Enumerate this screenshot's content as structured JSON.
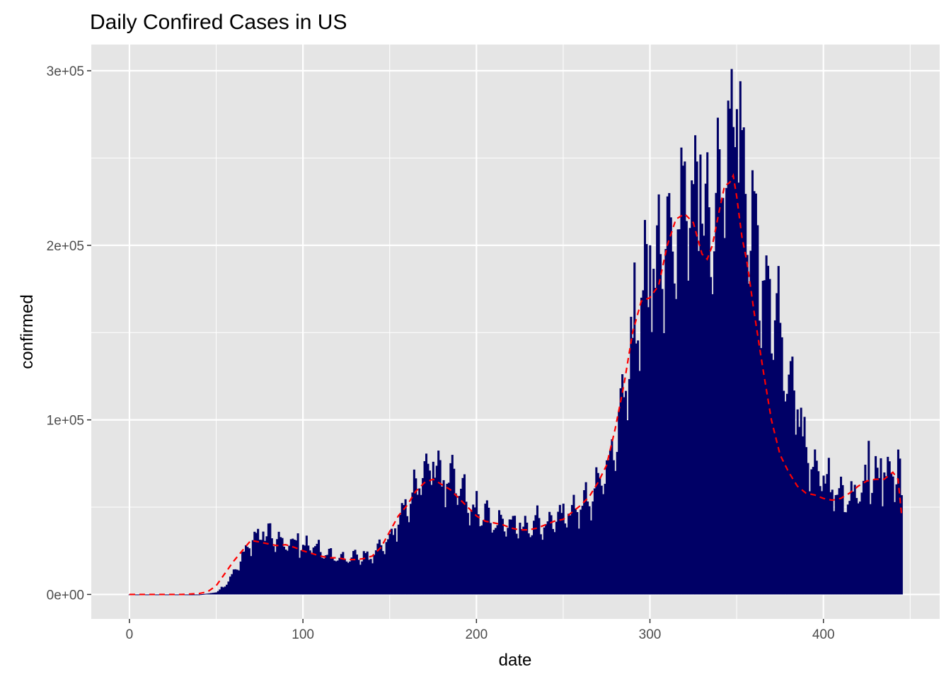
{
  "chart_data": {
    "type": "bar",
    "title": "Daily Confired Cases in US",
    "xlabel": "date",
    "ylabel": "confirmed",
    "xlim": [
      -22,
      467
    ],
    "ylim": [
      -14000,
      315000
    ],
    "x_ticks": [
      0,
      100,
      200,
      300,
      400
    ],
    "x_tick_labels": [
      "0",
      "100",
      "200",
      "300",
      "400"
    ],
    "y_ticks": [
      0,
      100000,
      200000,
      300000
    ],
    "y_tick_labels": [
      "0e+00",
      "1e+05",
      "2e+05",
      "3e+05"
    ],
    "grid": true,
    "legend": "none",
    "colors": {
      "panel": "#e5e5e5",
      "grid": "#ffffff",
      "bars": "#000066",
      "smooth": "#ff0000"
    },
    "bar_series": {
      "name": "daily confirmed",
      "x_start": 0,
      "x_end": 445,
      "keypoints": [
        [
          0,
          0
        ],
        [
          40,
          0
        ],
        [
          45,
          500
        ],
        [
          50,
          1200
        ],
        [
          55,
          5000
        ],
        [
          60,
          13000
        ],
        [
          64,
          20000
        ],
        [
          68,
          26000
        ],
        [
          72,
          32000
        ],
        [
          75,
          32000
        ],
        [
          80,
          33000
        ],
        [
          90,
          30000
        ],
        [
          100,
          28000
        ],
        [
          110,
          25000
        ],
        [
          120,
          22000
        ],
        [
          130,
          21000
        ],
        [
          140,
          22000
        ],
        [
          145,
          26000
        ],
        [
          150,
          34000
        ],
        [
          155,
          42000
        ],
        [
          160,
          52000
        ],
        [
          165,
          60000
        ],
        [
          170,
          68000
        ],
        [
          175,
          70000
        ],
        [
          180,
          68000
        ],
        [
          185,
          65000
        ],
        [
          190,
          63000
        ],
        [
          195,
          54000
        ],
        [
          200,
          47000
        ],
        [
          210,
          42000
        ],
        [
          220,
          42000
        ],
        [
          228,
          38000
        ],
        [
          235,
          40000
        ],
        [
          245,
          42000
        ],
        [
          255,
          47000
        ],
        [
          260,
          50000
        ],
        [
          265,
          55000
        ],
        [
          270,
          62000
        ],
        [
          275,
          72000
        ],
        [
          280,
          90000
        ],
        [
          285,
          115000
        ],
        [
          290,
          145000
        ],
        [
          295,
          172000
        ],
        [
          300,
          180000
        ],
        [
          305,
          185000
        ],
        [
          310,
          195000
        ],
        [
          315,
          210000
        ],
        [
          320,
          218000
        ],
        [
          325,
          220000
        ],
        [
          330,
          205000
        ],
        [
          335,
          205000
        ],
        [
          340,
          230000
        ],
        [
          345,
          255000
        ],
        [
          348,
          265000
        ],
        [
          352,
          250000
        ],
        [
          355,
          225000
        ],
        [
          360,
          205000
        ],
        [
          365,
          180000
        ],
        [
          370,
          165000
        ],
        [
          375,
          150000
        ],
        [
          380,
          120000
        ],
        [
          385,
          100000
        ],
        [
          390,
          82000
        ],
        [
          395,
          72000
        ],
        [
          400,
          66000
        ],
        [
          405,
          62000
        ],
        [
          410,
          58000
        ],
        [
          415,
          56000
        ],
        [
          420,
          58000
        ],
        [
          425,
          66000
        ],
        [
          430,
          68000
        ],
        [
          435,
          68000
        ],
        [
          440,
          72000
        ],
        [
          444,
          65000
        ],
        [
          445,
          46000
        ]
      ],
      "peaks": [
        [
          77,
          36000
        ],
        [
          97,
          35000
        ],
        [
          175,
          76000
        ],
        [
          187,
          72000
        ],
        [
          205,
          52000
        ],
        [
          235,
          51000
        ],
        [
          250,
          52000
        ],
        [
          285,
          113000
        ],
        [
          295,
          170000
        ],
        [
          300,
          200000
        ],
        [
          310,
          228000
        ],
        [
          320,
          248000
        ],
        [
          327,
          248000
        ],
        [
          329,
          252000
        ],
        [
          338,
          230000
        ],
        [
          347,
          301000
        ],
        [
          350,
          278000
        ],
        [
          352,
          294000
        ],
        [
          359,
          243000
        ],
        [
          385,
          106000
        ],
        [
          426,
          88000
        ],
        [
          433,
          78000
        ],
        [
          443,
          83000
        ]
      ]
    },
    "smooth_series": {
      "name": "smoothed",
      "x": [
        0,
        10,
        20,
        30,
        40,
        45,
        50,
        55,
        60,
        65,
        70,
        75,
        80,
        85,
        90,
        95,
        100,
        105,
        110,
        115,
        120,
        125,
        130,
        135,
        140,
        145,
        150,
        155,
        160,
        165,
        170,
        175,
        180,
        185,
        190,
        195,
        200,
        205,
        210,
        215,
        220,
        225,
        230,
        235,
        240,
        245,
        250,
        255,
        260,
        265,
        270,
        275,
        280,
        285,
        290,
        295,
        300,
        305,
        310,
        315,
        320,
        325,
        330,
        333,
        336,
        340,
        343,
        346,
        348,
        350,
        353,
        356,
        360,
        365,
        370,
        375,
        380,
        385,
        390,
        395,
        400,
        405,
        410,
        415,
        420,
        425,
        430,
        435,
        440,
        443,
        445
      ],
      "y": [
        0,
        0,
        0,
        0,
        500,
        1500,
        5000,
        12000,
        19000,
        25000,
        31000,
        30000,
        29000,
        28000,
        28500,
        27000,
        25000,
        23500,
        22000,
        21000,
        21000,
        20000,
        20000,
        20500,
        22000,
        27000,
        36000,
        45000,
        51000,
        59000,
        64000,
        66000,
        63000,
        60000,
        55000,
        50000,
        45000,
        42000,
        41000,
        40000,
        38000,
        37000,
        37000,
        38000,
        40000,
        42000,
        43000,
        47000,
        51000,
        56000,
        64000,
        74000,
        95000,
        120000,
        150000,
        168000,
        170000,
        177000,
        200000,
        215000,
        218000,
        213000,
        195000,
        192000,
        200000,
        220000,
        234000,
        236000,
        240000,
        228000,
        205000,
        190000,
        162000,
        130000,
        100000,
        80000,
        70000,
        62000,
        58000,
        57000,
        55000,
        54000,
        55000,
        58000,
        62000,
        65000,
        66000,
        66000,
        70000,
        66000,
        46000
      ]
    }
  }
}
